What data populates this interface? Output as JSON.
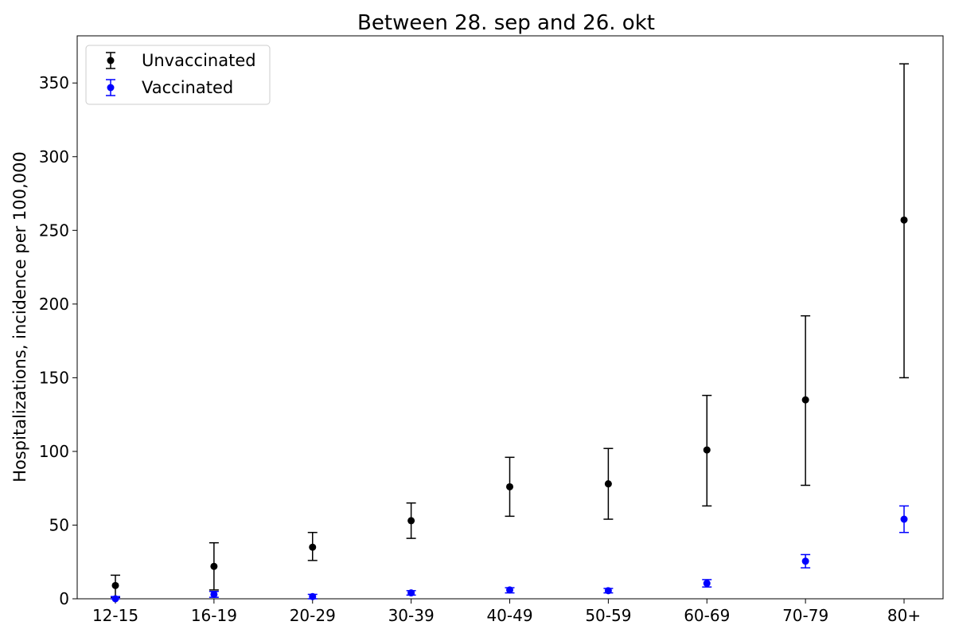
{
  "chart_data": {
    "type": "scatter",
    "title": "Between 28. sep and 26. okt",
    "xlabel": "",
    "ylabel": "Hospitalizations, incidence per 100,000",
    "categories": [
      "12-15",
      "16-19",
      "20-29",
      "30-39",
      "40-49",
      "50-59",
      "60-69",
      "70-79",
      "80+"
    ],
    "ylim": [
      0,
      382
    ],
    "yticks": [
      0,
      50,
      100,
      150,
      200,
      250,
      300,
      350
    ],
    "legend_position": "top-left",
    "grid": false,
    "series": [
      {
        "name": "Unvaccinated",
        "color": "#000000",
        "values": [
          9,
          22,
          35,
          53,
          76,
          78,
          101,
          135,
          257
        ],
        "lower": [
          1,
          6,
          26,
          41,
          56,
          54,
          63,
          77,
          150
        ],
        "upper": [
          16,
          38,
          45,
          65,
          96,
          102,
          138,
          192,
          363
        ]
      },
      {
        "name": "Vaccinated",
        "color": "#0000ff",
        "values": [
          0,
          3,
          1.5,
          4,
          6,
          5.5,
          10.5,
          25.5,
          54
        ],
        "lower": [
          0,
          1,
          0,
          2.5,
          4,
          4,
          8,
          21,
          45
        ],
        "upper": [
          1.5,
          5,
          3,
          5.5,
          7.5,
          7,
          13,
          30,
          63
        ]
      }
    ]
  }
}
